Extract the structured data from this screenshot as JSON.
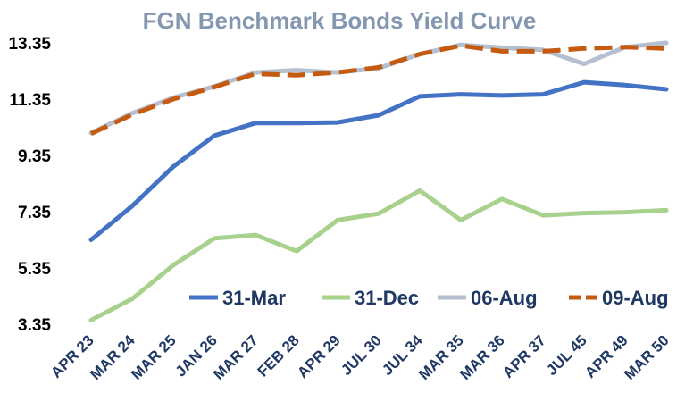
{
  "chart_data": {
    "type": "line",
    "title": "FGN Benchmark Bonds Yield Curve",
    "xlabel": "",
    "ylabel": "",
    "categories": [
      "APR 23",
      "MAR 24",
      "MAR 25",
      "JAN 26",
      "MAR 27",
      "FEB 28",
      "APR 29",
      "JUL 30",
      "JUL 34",
      "MAR 35",
      "MAR 36",
      "APR 37",
      "JUL 45",
      "APR 49",
      "MAR 50"
    ],
    "y_ticks": [
      "3.35",
      "5.35",
      "7.35",
      "9.35",
      "11.35",
      "13.35"
    ],
    "ylim": [
      3.35,
      13.35
    ],
    "grid": false,
    "legend_position": "bottom-right",
    "series": [
      {
        "name": "31-Mar",
        "color": "#4472c4",
        "style": "solid",
        "values": [
          6.35,
          7.55,
          8.95,
          10.05,
          10.5,
          10.5,
          10.52,
          10.78,
          11.45,
          11.52,
          11.48,
          11.52,
          11.95,
          11.85,
          11.7
        ]
      },
      {
        "name": "31-Dec",
        "color": "#a9d18e",
        "style": "solid",
        "values": [
          3.5,
          4.25,
          5.45,
          6.4,
          6.52,
          5.95,
          7.05,
          7.28,
          8.1,
          7.05,
          7.8,
          7.22,
          7.3,
          7.33,
          7.4
        ]
      },
      {
        "name": "06-Aug",
        "color": "#b4bfcf",
        "style": "solid",
        "values": [
          10.15,
          10.85,
          11.4,
          11.8,
          12.3,
          12.38,
          12.3,
          12.45,
          12.95,
          13.28,
          13.18,
          13.1,
          12.6,
          13.2,
          13.35
        ]
      },
      {
        "name": "09-Aug",
        "color": "#c55a11",
        "style": "dashed",
        "values": [
          10.12,
          10.8,
          11.35,
          11.78,
          12.25,
          12.2,
          12.3,
          12.48,
          12.95,
          13.25,
          13.05,
          13.05,
          13.15,
          13.2,
          13.15
        ]
      }
    ]
  }
}
